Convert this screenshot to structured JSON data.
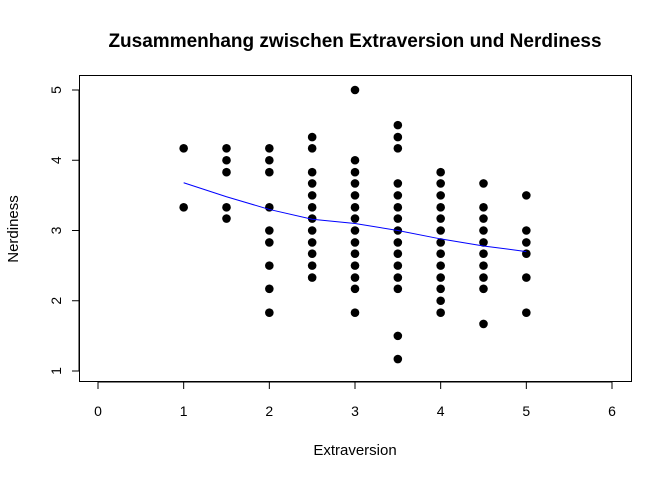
{
  "chart_data": {
    "type": "scatter",
    "title": "Zusammenhang zwischen Extraversion und Nerdiness",
    "xlabel": "Extraversion",
    "ylabel": "Nerdiness",
    "xlim": [
      0,
      6
    ],
    "ylim": [
      1,
      5
    ],
    "x_ticks": [
      "0",
      "1",
      "2",
      "3",
      "4",
      "5",
      "6"
    ],
    "y_ticks": [
      "1",
      "2",
      "3",
      "4",
      "5"
    ],
    "grid": false,
    "legend": "none",
    "point_color": "#000000",
    "line_color": "#0000ff",
    "points": [
      [
        1,
        4.17
      ],
      [
        1,
        3.33
      ],
      [
        1.5,
        4.17
      ],
      [
        1.5,
        4.0
      ],
      [
        1.5,
        3.83
      ],
      [
        1.5,
        3.33
      ],
      [
        1.5,
        3.17
      ],
      [
        2,
        4.17
      ],
      [
        2,
        4.0
      ],
      [
        2,
        3.83
      ],
      [
        2,
        3.33
      ],
      [
        2,
        3.0
      ],
      [
        2,
        2.83
      ],
      [
        2,
        2.5
      ],
      [
        2,
        2.17
      ],
      [
        2,
        1.83
      ],
      [
        2.5,
        4.33
      ],
      [
        2.5,
        4.17
      ],
      [
        2.5,
        3.83
      ],
      [
        2.5,
        3.67
      ],
      [
        2.5,
        3.5
      ],
      [
        2.5,
        3.33
      ],
      [
        2.5,
        3.17
      ],
      [
        2.5,
        3.0
      ],
      [
        2.5,
        2.83
      ],
      [
        2.5,
        2.67
      ],
      [
        2.5,
        2.5
      ],
      [
        2.5,
        2.33
      ],
      [
        3,
        5.0
      ],
      [
        3,
        4.0
      ],
      [
        3,
        3.83
      ],
      [
        3,
        3.67
      ],
      [
        3,
        3.5
      ],
      [
        3,
        3.33
      ],
      [
        3,
        3.17
      ],
      [
        3,
        3.0
      ],
      [
        3,
        2.83
      ],
      [
        3,
        2.67
      ],
      [
        3,
        2.5
      ],
      [
        3,
        2.33
      ],
      [
        3,
        2.17
      ],
      [
        3,
        1.83
      ],
      [
        3.5,
        4.5
      ],
      [
        3.5,
        4.33
      ],
      [
        3.5,
        4.17
      ],
      [
        3.5,
        3.67
      ],
      [
        3.5,
        3.5
      ],
      [
        3.5,
        3.33
      ],
      [
        3.5,
        3.17
      ],
      [
        3.5,
        3.0
      ],
      [
        3.5,
        2.83
      ],
      [
        3.5,
        2.67
      ],
      [
        3.5,
        2.5
      ],
      [
        3.5,
        2.33
      ],
      [
        3.5,
        2.17
      ],
      [
        3.5,
        1.5
      ],
      [
        3.5,
        1.17
      ],
      [
        4,
        3.83
      ],
      [
        4,
        3.67
      ],
      [
        4,
        3.5
      ],
      [
        4,
        3.33
      ],
      [
        4,
        3.17
      ],
      [
        4,
        3.0
      ],
      [
        4,
        2.83
      ],
      [
        4,
        2.67
      ],
      [
        4,
        2.5
      ],
      [
        4,
        2.33
      ],
      [
        4,
        2.17
      ],
      [
        4,
        2.0
      ],
      [
        4,
        1.83
      ],
      [
        4.5,
        3.67
      ],
      [
        4.5,
        3.33
      ],
      [
        4.5,
        3.17
      ],
      [
        4.5,
        3.0
      ],
      [
        4.5,
        2.83
      ],
      [
        4.5,
        2.67
      ],
      [
        4.5,
        2.5
      ],
      [
        4.5,
        2.33
      ],
      [
        4.5,
        2.17
      ],
      [
        4.5,
        1.67
      ],
      [
        5,
        3.5
      ],
      [
        5,
        3.0
      ],
      [
        5,
        2.83
      ],
      [
        5,
        2.67
      ],
      [
        5,
        2.33
      ],
      [
        5,
        1.83
      ]
    ],
    "smooth_line": {
      "x": [
        1,
        1.5,
        2,
        2.5,
        3,
        3.5,
        4,
        4.5,
        5
      ],
      "y": [
        3.68,
        3.48,
        3.3,
        3.16,
        3.1,
        3.0,
        2.88,
        2.78,
        2.7
      ]
    }
  }
}
